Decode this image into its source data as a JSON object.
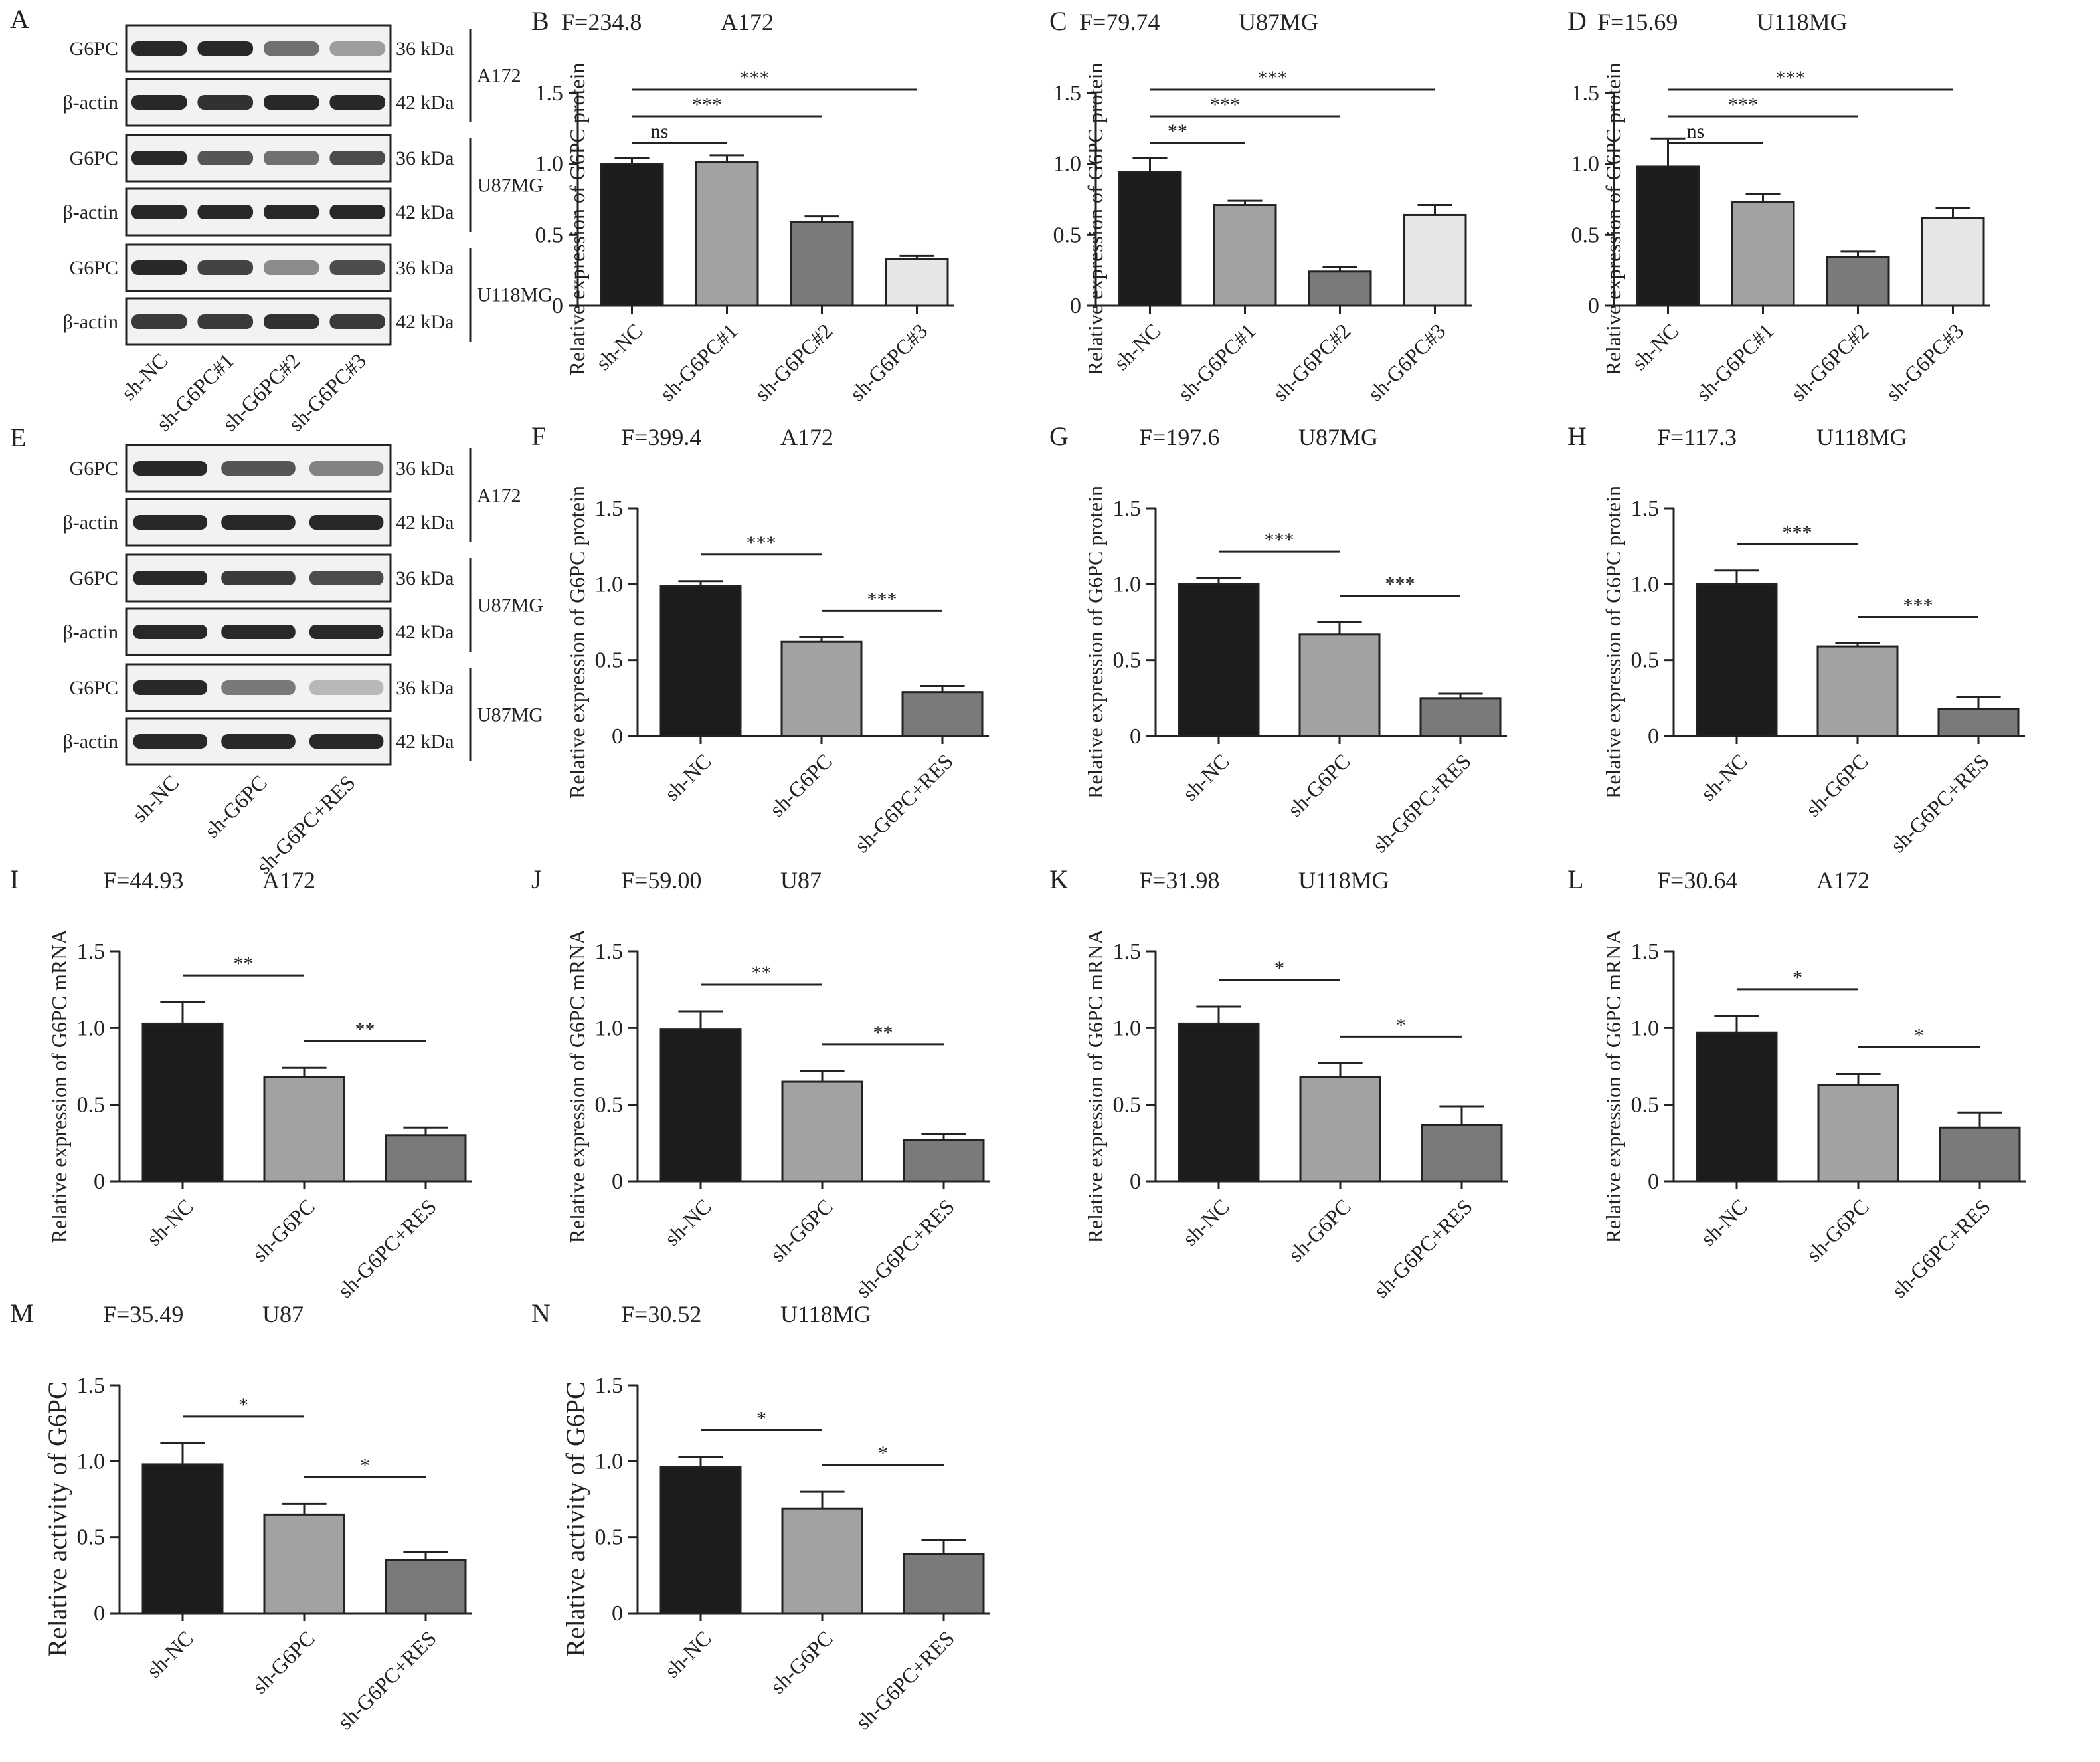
{
  "blots": [
    {
      "letter": "A",
      "lanes": [
        "sh-NC",
        "sh-G6PC#1",
        "sh-G6PC#2",
        "sh-G6PC#3"
      ],
      "groups": [
        {
          "cell": "A172",
          "rows": [
            {
              "label": "G6PC",
              "kda": "36 kDa",
              "intensity": [
                1.0,
                1.0,
                0.6,
                0.35
              ]
            },
            {
              "label": "β-actin",
              "kda": "42 kDa",
              "intensity": [
                1.0,
                0.95,
                1.0,
                1.0
              ]
            }
          ]
        },
        {
          "cell": "U87MG",
          "rows": [
            {
              "label": "G6PC",
              "kda": "36 kDa",
              "intensity": [
                1.0,
                0.75,
                0.6,
                0.8
              ]
            },
            {
              "label": "β-actin",
              "kda": "42 kDa",
              "intensity": [
                1.0,
                1.0,
                1.0,
                1.0
              ]
            }
          ]
        },
        {
          "cell": "U118MG",
          "rows": [
            {
              "label": "G6PC",
              "kda": "36 kDa",
              "intensity": [
                1.0,
                0.85,
                0.45,
                0.8
              ]
            },
            {
              "label": "β-actin",
              "kda": "42 kDa",
              "intensity": [
                0.9,
                0.9,
                0.95,
                0.9
              ]
            }
          ]
        }
      ]
    },
    {
      "letter": "E",
      "lanes": [
        "sh-NC",
        "sh-G6PC",
        "sh-G6PC+RES"
      ],
      "groups": [
        {
          "cell": "A172",
          "rows": [
            {
              "label": "G6PC",
              "kda": "36 kDa",
              "intensity": [
                1.0,
                0.75,
                0.5
              ]
            },
            {
              "label": "β-actin",
              "kda": "42 kDa",
              "intensity": [
                1.0,
                1.0,
                1.0
              ]
            }
          ]
        },
        {
          "cell": "U87MG",
          "rows": [
            {
              "label": "G6PC",
              "kda": "36 kDa",
              "intensity": [
                1.0,
                0.9,
                0.8
              ]
            },
            {
              "label": "β-actin",
              "kda": "42 kDa",
              "intensity": [
                1.0,
                1.0,
                1.0
              ]
            }
          ]
        },
        {
          "cell": "U87MG",
          "rows": [
            {
              "label": "G6PC",
              "kda": "36 kDa",
              "intensity": [
                1.0,
                0.55,
                0.2
              ]
            },
            {
              "label": "β-actin",
              "kda": "42 kDa",
              "intensity": [
                1.0,
                1.0,
                1.0
              ]
            }
          ]
        }
      ]
    }
  ],
  "chart_data": [
    {
      "letter": "B",
      "type": "bar",
      "stat": "F=234.8",
      "cell": "A172",
      "ylabel": "Relative expression of G6PC protein",
      "ylim": [
        0,
        1.5
      ],
      "yticks": [
        "0",
        "0.5",
        "1.0",
        "1.5"
      ],
      "categories": [
        "sh-NC",
        "sh-G6PC#1",
        "sh-G6PC#2",
        "sh-G6PC#3"
      ],
      "values": [
        1.0,
        1.01,
        0.59,
        0.33
      ],
      "errors": [
        0.04,
        0.05,
        0.04,
        0.02
      ],
      "colors": [
        "#1c1c1c",
        "#a2a2a2",
        "#7a7a7a",
        "#e6e6e6"
      ],
      "brackets": [
        {
          "from": 0,
          "to": 1,
          "label": "ns"
        },
        {
          "from": 0,
          "to": 2,
          "label": "***"
        },
        {
          "from": 0,
          "to": 3,
          "label": "***"
        }
      ]
    },
    {
      "letter": "C",
      "type": "bar",
      "stat": "F=79.74",
      "cell": "U87MG",
      "ylabel": "Relative expression of G6PC protein",
      "ylim": [
        0,
        1.5
      ],
      "yticks": [
        "0",
        "0.5",
        "1.0",
        "1.5"
      ],
      "categories": [
        "sh-NC",
        "sh-G6PC#1",
        "sh-G6PC#2",
        "sh-G6PC#3"
      ],
      "values": [
        0.94,
        0.71,
        0.24,
        0.64
      ],
      "errors": [
        0.1,
        0.03,
        0.03,
        0.07
      ],
      "colors": [
        "#1c1c1c",
        "#a2a2a2",
        "#7a7a7a",
        "#e6e6e6"
      ],
      "brackets": [
        {
          "from": 0,
          "to": 1,
          "label": "**"
        },
        {
          "from": 0,
          "to": 2,
          "label": "***"
        },
        {
          "from": 0,
          "to": 3,
          "label": "***"
        }
      ]
    },
    {
      "letter": "D",
      "type": "bar",
      "stat": "F=15.69",
      "cell": "U118MG",
      "ylabel": "Relative expression of G6PC protein",
      "ylim": [
        0,
        1.5
      ],
      "yticks": [
        "0",
        "0.5",
        "1.0",
        "1.5"
      ],
      "categories": [
        "sh-NC",
        "sh-G6PC#1",
        "sh-G6PC#2",
        "sh-G6PC#3"
      ],
      "values": [
        0.98,
        0.73,
        0.34,
        0.62
      ],
      "errors": [
        0.2,
        0.06,
        0.04,
        0.07
      ],
      "colors": [
        "#1c1c1c",
        "#a2a2a2",
        "#7a7a7a",
        "#e6e6e6"
      ],
      "brackets": [
        {
          "from": 0,
          "to": 1,
          "label": "ns"
        },
        {
          "from": 0,
          "to": 2,
          "label": "***"
        },
        {
          "from": 0,
          "to": 3,
          "label": "***"
        }
      ]
    },
    {
      "letter": "F",
      "type": "bar",
      "stat": "F=399.4",
      "cell": "A172",
      "ylabel": "Relative expression of G6PC protein",
      "ylim": [
        0,
        1.5
      ],
      "yticks": [
        "0",
        "0.5",
        "1.0",
        "1.5"
      ],
      "categories": [
        "sh-NC",
        "sh-G6PC",
        "sh-G6PC+RES"
      ],
      "values": [
        0.99,
        0.62,
        0.29
      ],
      "errors": [
        0.03,
        0.03,
        0.04
      ],
      "colors": [
        "#1c1c1c",
        "#a2a2a2",
        "#7a7a7a"
      ],
      "brackets": [
        {
          "from": 0,
          "to": 1,
          "label": "***"
        },
        {
          "from": 1,
          "to": 2,
          "label": "***"
        }
      ]
    },
    {
      "letter": "G",
      "type": "bar",
      "stat": "F=197.6",
      "cell": "U87MG",
      "ylabel": "Relative expression of G6PC protein",
      "ylim": [
        0,
        1.5
      ],
      "yticks": [
        "0",
        "0.5",
        "1.0",
        "1.5"
      ],
      "categories": [
        "sh-NC",
        "sh-G6PC",
        "sh-G6PC+RES"
      ],
      "values": [
        1.0,
        0.67,
        0.25
      ],
      "errors": [
        0.04,
        0.08,
        0.03
      ],
      "colors": [
        "#1c1c1c",
        "#a2a2a2",
        "#7a7a7a"
      ],
      "brackets": [
        {
          "from": 0,
          "to": 1,
          "label": "***"
        },
        {
          "from": 1,
          "to": 2,
          "label": "***"
        }
      ]
    },
    {
      "letter": "H",
      "type": "bar",
      "stat": "F=117.3",
      "cell": "U118MG",
      "ylabel": "Relative expression of G6PC protein",
      "ylim": [
        0,
        1.5
      ],
      "yticks": [
        "0",
        "0.5",
        "1.0",
        "1.5"
      ],
      "categories": [
        "sh-NC",
        "sh-G6PC",
        "sh-G6PC+RES"
      ],
      "values": [
        1.0,
        0.59,
        0.18
      ],
      "errors": [
        0.09,
        0.02,
        0.08
      ],
      "colors": [
        "#1c1c1c",
        "#a2a2a2",
        "#7a7a7a"
      ],
      "brackets": [
        {
          "from": 0,
          "to": 1,
          "label": "***"
        },
        {
          "from": 1,
          "to": 2,
          "label": "***"
        }
      ]
    },
    {
      "letter": "I",
      "type": "bar",
      "stat": "F=44.93",
      "cell": "A172",
      "ylabel": "Relative expression of G6PC mRNA",
      "ylim": [
        0,
        1.5
      ],
      "yticks": [
        "0",
        "0.5",
        "1.0",
        "1.5"
      ],
      "categories": [
        "sh-NC",
        "sh-G6PC",
        "sh-G6PC+RES"
      ],
      "values": [
        1.03,
        0.68,
        0.3
      ],
      "errors": [
        0.14,
        0.06,
        0.05
      ],
      "colors": [
        "#1c1c1c",
        "#a2a2a2",
        "#7a7a7a"
      ],
      "brackets": [
        {
          "from": 0,
          "to": 1,
          "label": "**"
        },
        {
          "from": 1,
          "to": 2,
          "label": "**"
        }
      ]
    },
    {
      "letter": "J",
      "type": "bar",
      "stat": "F=59.00",
      "cell": "U87",
      "ylabel": "Relative expression of G6PC mRNA",
      "ylim": [
        0,
        1.5
      ],
      "yticks": [
        "0",
        "0.5",
        "1.0",
        "1.5"
      ],
      "categories": [
        "sh-NC",
        "sh-G6PC",
        "sh-G6PC+RES"
      ],
      "values": [
        0.99,
        0.65,
        0.27
      ],
      "errors": [
        0.12,
        0.07,
        0.04
      ],
      "colors": [
        "#1c1c1c",
        "#a2a2a2",
        "#7a7a7a"
      ],
      "brackets": [
        {
          "from": 0,
          "to": 1,
          "label": "**"
        },
        {
          "from": 1,
          "to": 2,
          "label": "**"
        }
      ]
    },
    {
      "letter": "K",
      "type": "bar",
      "stat": "F=31.98",
      "cell": "U118MG",
      "ylabel": "Relative expression of G6PC mRNA",
      "ylim": [
        0,
        1.5
      ],
      "yticks": [
        "0",
        "0.5",
        "1.0",
        "1.5"
      ],
      "categories": [
        "sh-NC",
        "sh-G6PC",
        "sh-G6PC+RES"
      ],
      "values": [
        1.03,
        0.68,
        0.37
      ],
      "errors": [
        0.11,
        0.09,
        0.12
      ],
      "colors": [
        "#1c1c1c",
        "#a2a2a2",
        "#7a7a7a"
      ],
      "brackets": [
        {
          "from": 0,
          "to": 1,
          "label": "*"
        },
        {
          "from": 1,
          "to": 2,
          "label": "*"
        }
      ]
    },
    {
      "letter": "L",
      "type": "bar",
      "stat": "F=30.64",
      "cell": "A172",
      "ylabel": "Relative expression of G6PC mRNA",
      "ylim": [
        0,
        1.5
      ],
      "yticks": [
        "0",
        "0.5",
        "1.0",
        "1.5"
      ],
      "categories": [
        "sh-NC",
        "sh-G6PC",
        "sh-G6PC+RES"
      ],
      "values": [
        0.97,
        0.63,
        0.35
      ],
      "errors": [
        0.11,
        0.07,
        0.1
      ],
      "colors": [
        "#1c1c1c",
        "#a2a2a2",
        "#7a7a7a"
      ],
      "brackets": [
        {
          "from": 0,
          "to": 1,
          "label": "*"
        },
        {
          "from": 1,
          "to": 2,
          "label": "*"
        }
      ]
    },
    {
      "letter": "M",
      "type": "bar",
      "stat": "F=35.49",
      "cell": "U87",
      "ylabel": "Relative activity of G6PC",
      "ylim": [
        0,
        1.5
      ],
      "yticks": [
        "0",
        "0.5",
        "1.0",
        "1.5"
      ],
      "categories": [
        "sh-NC",
        "sh-G6PC",
        "sh-G6PC+RES"
      ],
      "values": [
        0.98,
        0.65,
        0.35
      ],
      "errors": [
        0.14,
        0.07,
        0.05
      ],
      "colors": [
        "#1c1c1c",
        "#a2a2a2",
        "#7a7a7a"
      ],
      "brackets": [
        {
          "from": 0,
          "to": 1,
          "label": "*"
        },
        {
          "from": 1,
          "to": 2,
          "label": "*"
        }
      ]
    },
    {
      "letter": "N",
      "type": "bar",
      "stat": "F=30.52",
      "cell": "U118MG",
      "ylabel": "Relative activity of G6PC",
      "ylim": [
        0,
        1.5
      ],
      "yticks": [
        "0",
        "0.5",
        "1.0",
        "1.5"
      ],
      "categories": [
        "sh-NC",
        "sh-G6PC",
        "sh-G6PC+RES"
      ],
      "values": [
        0.96,
        0.69,
        0.39
      ],
      "errors": [
        0.07,
        0.11,
        0.09
      ],
      "colors": [
        "#1c1c1c",
        "#a2a2a2",
        "#7a7a7a"
      ],
      "brackets": [
        {
          "from": 0,
          "to": 1,
          "label": "*"
        },
        {
          "from": 1,
          "to": 2,
          "label": "*"
        }
      ]
    }
  ]
}
